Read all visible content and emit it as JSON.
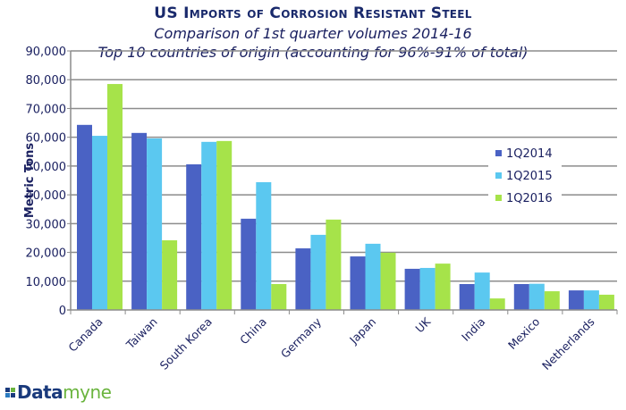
{
  "chart_data": {
    "type": "bar",
    "title": "US Imports of Corrosion Resistant Steel",
    "subtitle_lines": [
      "Comparison of 1st quarter volumes 2014-16",
      "Top 10 countries of origin (accounting for 96%-91% of total)"
    ],
    "xlabel": "",
    "ylabel": "Metric Tons",
    "ylim": [
      0,
      90000
    ],
    "yticks": [
      0,
      10000,
      20000,
      30000,
      40000,
      50000,
      60000,
      70000,
      80000,
      90000
    ],
    "ytick_labels": [
      "0",
      "10,000",
      "20,000",
      "30,000",
      "40,000",
      "50,000",
      "60,000",
      "70,000",
      "80,000",
      "90,000"
    ],
    "grid": true,
    "legend_position": "right",
    "categories": [
      "Canada",
      "Taiwan",
      "South Korea",
      "China",
      "Germany",
      "Japan",
      "UK",
      "India",
      "Mexico",
      "Netherlands"
    ],
    "series": [
      {
        "name": "1Q2014",
        "color": "#4a62c4",
        "values": [
          64300,
          61500,
          50600,
          31700,
          21400,
          18600,
          14300,
          9000,
          9000,
          6800
        ]
      },
      {
        "name": "1Q2015",
        "color": "#5bc8f0",
        "values": [
          60500,
          59600,
          58400,
          44400,
          26100,
          23000,
          14600,
          13000,
          9100,
          6800
        ]
      },
      {
        "name": "1Q2016",
        "color": "#a6e34a",
        "values": [
          78500,
          24200,
          58700,
          9000,
          31400,
          19900,
          16100,
          4000,
          6500,
          5300
        ]
      }
    ]
  },
  "branding": {
    "logo_icon": "squares-grid-icon",
    "logo_text_a": "Data",
    "logo_text_b": "myne",
    "logo_colors": [
      "#1a3a7c",
      "#6ab43e",
      "#2a7ac0",
      "#1a3a7c"
    ]
  }
}
